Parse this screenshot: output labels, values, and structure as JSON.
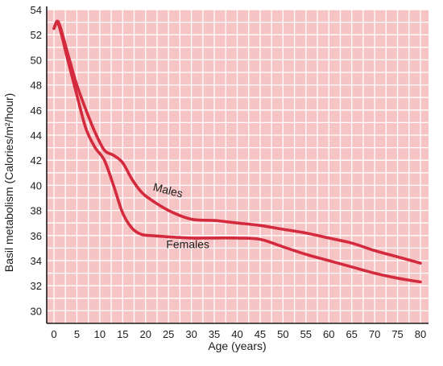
{
  "chart_data": {
    "type": "line",
    "title": "",
    "xlabel": "Age (years)",
    "ylabel": "Basil metabolism (Calories/m²/hour)",
    "xlim": [
      0,
      80
    ],
    "ylim": [
      29,
      54
    ],
    "x_ticks": [
      0,
      5,
      10,
      15,
      20,
      25,
      30,
      35,
      40,
      45,
      50,
      55,
      60,
      65,
      70,
      75,
      80
    ],
    "y_ticks": [
      30,
      32,
      34,
      36,
      38,
      40,
      42,
      44,
      46,
      48,
      50,
      52,
      54
    ],
    "grid": true,
    "legend": "none",
    "series": [
      {
        "name": "Males",
        "color": "#d42a3e",
        "x": [
          0,
          1,
          3,
          5,
          7,
          9,
          11,
          13,
          15,
          17,
          19,
          21,
          25,
          30,
          35,
          40,
          45,
          50,
          55,
          60,
          65,
          70,
          75,
          80
        ],
        "y": [
          52.5,
          53.0,
          50.5,
          48.0,
          46.0,
          44.2,
          42.8,
          42.4,
          41.8,
          40.5,
          39.5,
          38.9,
          38.0,
          37.3,
          37.2,
          37.0,
          36.8,
          36.5,
          36.2,
          35.8,
          35.4,
          34.8,
          34.3,
          33.8
        ]
      },
      {
        "name": "Females",
        "color": "#d42a3e",
        "x": [
          0,
          1,
          3,
          5,
          7,
          9,
          11,
          13,
          15,
          17,
          19,
          21,
          25,
          30,
          35,
          40,
          45,
          50,
          55,
          60,
          65,
          70,
          75,
          80
        ],
        "y": [
          52.5,
          52.8,
          50.0,
          47.2,
          44.5,
          43.0,
          42.0,
          40.0,
          37.8,
          36.6,
          36.1,
          36.0,
          35.9,
          35.8,
          35.8,
          35.8,
          35.7,
          35.1,
          34.5,
          34.0,
          33.5,
          33.0,
          32.6,
          32.3
        ]
      }
    ]
  }
}
